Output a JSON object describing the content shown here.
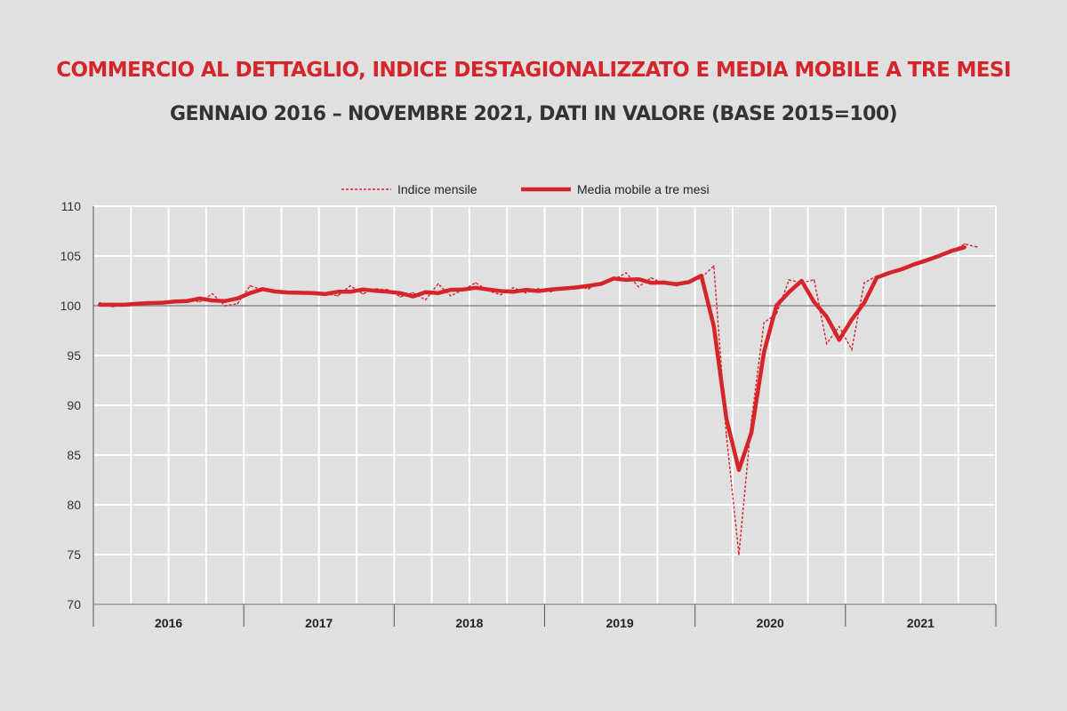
{
  "chart_data": {
    "type": "line",
    "title": "COMMERCIO AL DETTAGLIO, INDICE DESTAGIONALIZZATO E MEDIA MOBILE A TRE MESI",
    "subtitle": "GENNAIO 2016 – NOVEMBRE 2021, DATI IN VALORE (BASE 2015=100)",
    "xlabel": "",
    "ylabel": "",
    "ylim": [
      70,
      110
    ],
    "yticks": [
      "110",
      "105",
      "100",
      "95",
      "90",
      "85",
      "80",
      "75",
      "70"
    ],
    "year_labels": [
      "2016",
      "2017",
      "2018",
      "2019",
      "2020",
      "2021"
    ],
    "x_start": "2016-01",
    "x_end": "2021-11",
    "reference_line": 100,
    "grid": true,
    "legend_position": "top-center",
    "colors": {
      "series": "#d6242b",
      "grid": "#ffffff",
      "reference": "#8a8a8a",
      "background": "#e0e0e0"
    },
    "series": [
      {
        "name": "Indice mensile",
        "style": "dashed",
        "values": [
          100.3,
          99.9,
          100.1,
          100.3,
          100.2,
          100.3,
          100.4,
          100.6,
          100.4,
          101.2,
          100.0,
          100.2,
          102.0,
          101.6,
          101.4,
          101.3,
          101.3,
          101.3,
          101.2,
          101.0,
          102.0,
          101.2,
          101.7,
          101.6,
          100.9,
          101.3,
          100.6,
          102.2,
          101.0,
          101.6,
          102.3,
          101.5,
          101.1,
          101.8,
          101.3,
          101.7,
          101.4,
          101.8,
          102.0,
          101.7,
          102.3,
          102.6,
          103.3,
          101.9,
          102.8,
          102.2,
          102.0,
          102.3,
          102.8,
          104.0,
          87.0,
          75.0,
          88.5,
          98.3,
          99.2,
          102.6,
          102.3,
          102.6,
          96.2,
          97.9,
          95.6,
          102.3,
          103.0,
          103.2,
          103.7,
          104.1,
          104.7,
          104.9,
          105.5,
          106.2,
          105.9
        ]
      },
      {
        "name": "Media mobile a tre mesi",
        "style": "solid",
        "window": 3,
        "centered": true,
        "values": []
      }
    ]
  }
}
